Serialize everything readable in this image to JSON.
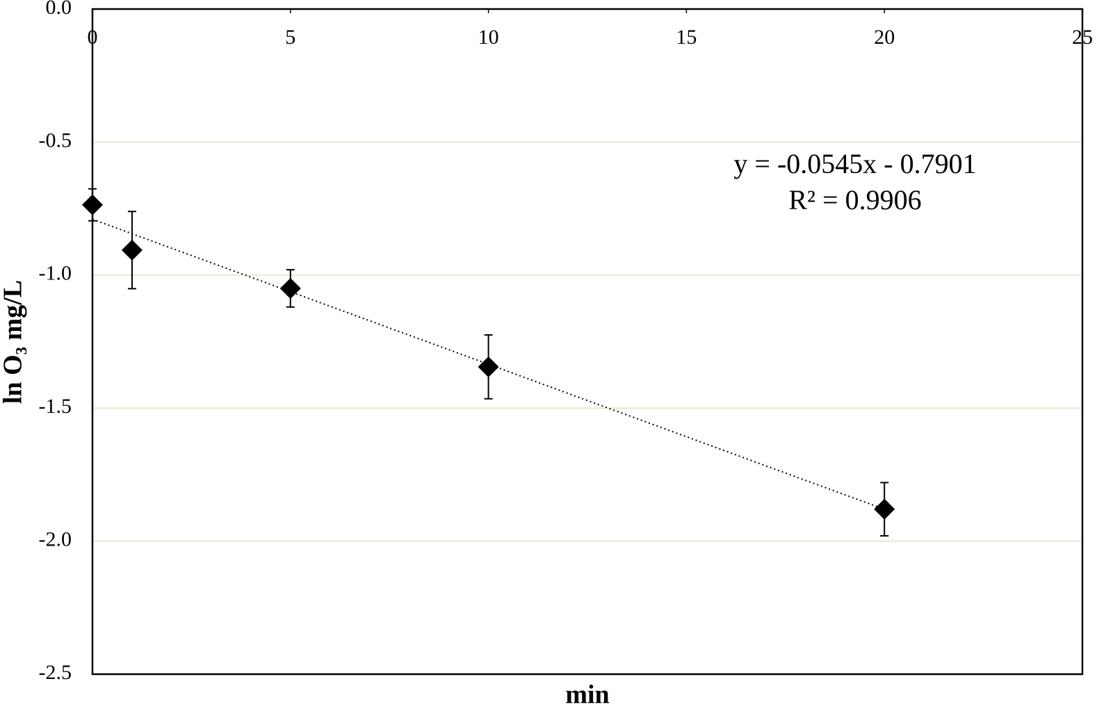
{
  "chart_data": {
    "type": "scatter",
    "x_label": "min",
    "y_label": "ln O₃ mg/L",
    "xlim": [
      0,
      25
    ],
    "xticks": [
      0,
      5,
      10,
      15,
      20,
      25
    ],
    "ylim": [
      -2.5,
      0
    ],
    "yticks": [
      {
        "value": 0,
        "label": "0.0"
      },
      -0.5,
      {
        "value": -1,
        "label": "-1.0"
      },
      -1.5,
      {
        "value": -2,
        "label": "-2.0"
      },
      -2.5
    ],
    "grid": true,
    "series": [
      {
        "color": "#000000",
        "x": [
          0,
          1,
          5,
          10,
          20
        ],
        "values": [
          -0.736,
          -0.906,
          -1.05,
          -1.345,
          -1.88
        ],
        "errors": [
          0.06,
          0.145,
          0.07,
          0.12,
          0.1
        ]
      }
    ],
    "trendline": {
      "slope": -0.0545,
      "intercept": -0.7901,
      "equation": "y = -0.0545x - 0.7901",
      "r2_label": "R² = 0.9906"
    }
  }
}
